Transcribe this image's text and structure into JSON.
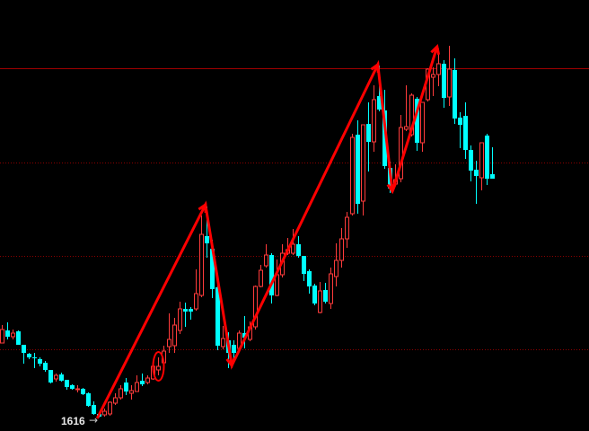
{
  "chart_data": {
    "type": "candlestick",
    "title": "",
    "xlabel": "",
    "ylabel": "",
    "ylim": [
      1601,
      2081
    ],
    "grid": true,
    "colors": {
      "background": "#000000",
      "up": "#ff3b3b",
      "down": "#00ffff",
      "grid": "#8b0000",
      "resistance": "#a00000",
      "annotation": "#ff0000"
    },
    "candles_ohlc": [
      [
        1699,
        1719,
        1699,
        1714
      ],
      [
        1713,
        1722,
        1703,
        1706
      ],
      [
        1706,
        1714,
        1703,
        1710
      ],
      [
        1712,
        1713,
        1697,
        1697
      ],
      [
        1697,
        1697,
        1676,
        1688
      ],
      [
        1687,
        1688,
        1681,
        1683
      ],
      [
        1683,
        1688,
        1671,
        1682
      ],
      [
        1681,
        1683,
        1673,
        1676
      ],
      [
        1677,
        1679,
        1667,
        1669
      ],
      [
        1669,
        1669,
        1654,
        1655
      ],
      [
        1659,
        1665,
        1656,
        1663
      ],
      [
        1664,
        1666,
        1656,
        1657
      ],
      [
        1658,
        1658,
        1647,
        1650
      ],
      [
        1652,
        1653,
        1647,
        1648
      ],
      [
        1648,
        1652,
        1644,
        1648
      ],
      [
        1648,
        1649,
        1641,
        1642
      ],
      [
        1643,
        1644,
        1628,
        1629
      ],
      [
        1630,
        1634,
        1619,
        1620
      ],
      [
        1620,
        1621,
        1616,
        1617
      ],
      [
        1619,
        1626,
        1617,
        1623
      ],
      [
        1620,
        1634,
        1618,
        1633
      ],
      [
        1632,
        1643,
        1630,
        1638
      ],
      [
        1638,
        1652,
        1636,
        1648
      ],
      [
        1655,
        1660,
        1641,
        1645
      ],
      [
        1643,
        1652,
        1636,
        1646
      ],
      [
        1645,
        1663,
        1645,
        1655
      ],
      [
        1657,
        1665,
        1651,
        1653
      ],
      [
        1655,
        1663,
        1653,
        1660
      ],
      [
        1659,
        1676,
        1658,
        1673
      ],
      [
        1669,
        1683,
        1663,
        1673
      ],
      [
        1677,
        1696,
        1671,
        1690
      ],
      [
        1695,
        1732,
        1688,
        1703
      ],
      [
        1696,
        1727,
        1688,
        1719
      ],
      [
        1713,
        1745,
        1709,
        1737
      ],
      [
        1737,
        1744,
        1717,
        1734
      ],
      [
        1737,
        1739,
        1725,
        1734
      ],
      [
        1737,
        1781,
        1735,
        1754
      ],
      [
        1752,
        1841,
        1750,
        1820
      ],
      [
        1818,
        1851,
        1794,
        1810
      ],
      [
        1804,
        1814,
        1749,
        1759
      ],
      [
        1761,
        1763,
        1691,
        1696
      ],
      [
        1695,
        1718,
        1692,
        1704
      ],
      [
        1702,
        1711,
        1671,
        1688
      ],
      [
        1697,
        1702,
        1678,
        1688
      ],
      [
        1693,
        1713,
        1691,
        1710
      ],
      [
        1710,
        1729,
        1693,
        1705
      ],
      [
        1703,
        1723,
        1701,
        1717
      ],
      [
        1717,
        1763,
        1714,
        1762
      ],
      [
        1762,
        1786,
        1761,
        1780
      ],
      [
        1785,
        1809,
        1783,
        1797
      ],
      [
        1797,
        1799,
        1743,
        1752
      ],
      [
        1752,
        1792,
        1751,
        1775
      ],
      [
        1775,
        1809,
        1772,
        1799
      ],
      [
        1799,
        1816,
        1797,
        1803
      ],
      [
        1799,
        1826,
        1797,
        1809
      ],
      [
        1809,
        1818,
        1794,
        1796
      ],
      [
        1796,
        1796,
        1768,
        1776
      ],
      [
        1779,
        1781,
        1754,
        1762
      ],
      [
        1763,
        1765,
        1741,
        1743
      ],
      [
        1733,
        1767,
        1732,
        1757
      ],
      [
        1758,
        1766,
        1743,
        1745
      ],
      [
        1743,
        1783,
        1737,
        1776
      ],
      [
        1773,
        1810,
        1762,
        1791
      ],
      [
        1791,
        1827,
        1783,
        1815
      ],
      [
        1815,
        1845,
        1805,
        1839
      ],
      [
        1843,
        1932,
        1841,
        1928
      ],
      [
        1931,
        1947,
        1843,
        1854
      ],
      [
        1857,
        1942,
        1841,
        1942
      ],
      [
        1943,
        1967,
        1890,
        1923
      ],
      [
        1923,
        1986,
        1912,
        1970
      ],
      [
        1974,
        2008,
        1957,
        1959
      ],
      [
        1958,
        1981,
        1893,
        1896
      ],
      [
        1894,
        1901,
        1866,
        1871
      ],
      [
        1876,
        1898,
        1876,
        1881
      ],
      [
        1882,
        1953,
        1878,
        1939
      ],
      [
        1937,
        1986,
        1935,
        1940
      ],
      [
        1931,
        1977,
        1929,
        1975
      ],
      [
        1971,
        1973,
        1913,
        1922
      ],
      [
        1922,
        1967,
        1912,
        1967
      ],
      [
        1970,
        2005,
        1968,
        2004
      ],
      [
        1995,
        2006,
        1974,
        1998
      ],
      [
        1998,
        2027,
        1985,
        2010
      ],
      [
        2010,
        2014,
        1961,
        1972
      ],
      [
        1973,
        2030,
        1963,
        2004
      ],
      [
        2003,
        2016,
        1943,
        1949
      ],
      [
        1950,
        1956,
        1916,
        1942
      ],
      [
        1952,
        1967,
        1904,
        1914
      ],
      [
        1914,
        1919,
        1879,
        1891
      ],
      [
        1892,
        1902,
        1854,
        1885
      ],
      [
        1883,
        1922,
        1869,
        1922
      ],
      [
        1930,
        1932,
        1875,
        1882
      ],
      [
        1887,
        1917,
        1882,
        1882
      ]
    ],
    "grid_levels": [
      1900,
      1796,
      1692
    ],
    "resistance_level": 2005,
    "zigzag": [
      {
        "index": 17.7,
        "price": 1615
      },
      {
        "index": 37.8,
        "price": 1853
      },
      {
        "index": 42.7,
        "price": 1674
      },
      {
        "index": 69.8,
        "price": 2009
      },
      {
        "index": 72.5,
        "price": 1868
      },
      {
        "index": 80.8,
        "price": 2029
      }
    ],
    "circled_candle_index": 29,
    "low_label": "1616",
    "low_arrow": "→"
  }
}
